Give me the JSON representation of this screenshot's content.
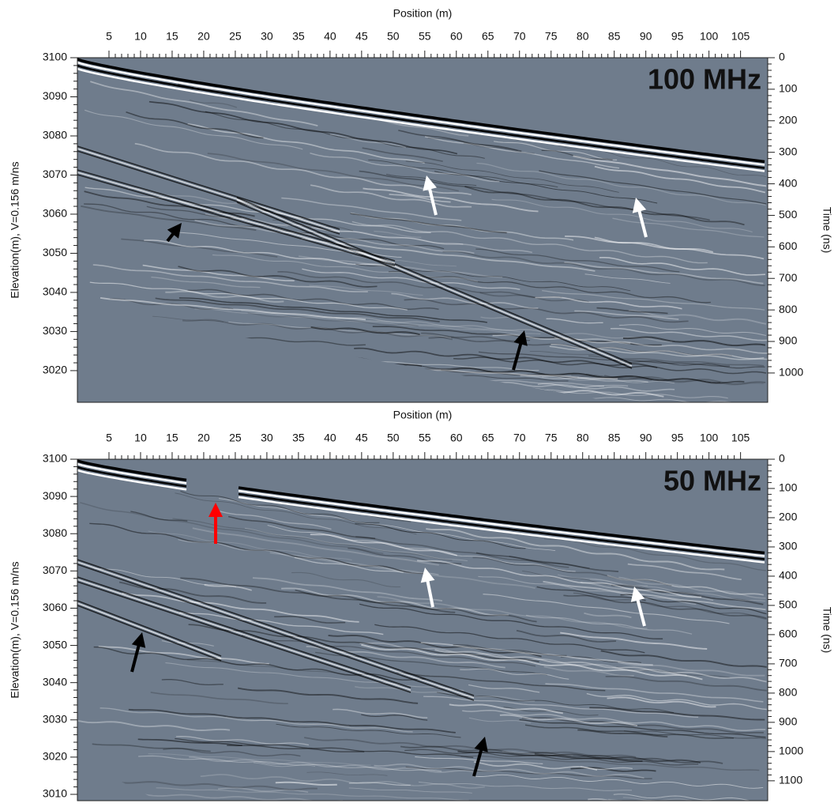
{
  "chart_data": [
    {
      "type": "radargram",
      "label": "100 MHz",
      "xlabel": "Position (m)",
      "ylabel": "Elevation(m), V=0.156 m/ns",
      "y2label": "Time (ns)",
      "xlim": [
        0,
        109.3
      ],
      "xticks": [
        5,
        10,
        15,
        20,
        25,
        30,
        35,
        40,
        45,
        50,
        55,
        60,
        65,
        70,
        75,
        80,
        85,
        90,
        95,
        100,
        105
      ],
      "ylim": [
        3011.9,
        3100
      ],
      "yticks": [
        3020,
        3030,
        3040,
        3050,
        3060,
        3070,
        3080,
        3090,
        3100
      ],
      "y2lim": [
        1093,
        0
      ],
      "y2ticks": [
        0,
        100,
        200,
        300,
        400,
        500,
        600,
        700,
        800,
        900,
        1000
      ]
    },
    {
      "type": "radargram",
      "label": "50 MHz",
      "xlabel": "Position (m)",
      "ylabel": "Elevation(m), V=0.156 m/ns",
      "y2label": "Time (ns)",
      "xlim": [
        0,
        109.3
      ],
      "xticks": [
        5,
        10,
        15,
        20,
        25,
        30,
        35,
        40,
        45,
        50,
        55,
        60,
        65,
        70,
        75,
        80,
        85,
        90,
        95,
        100,
        105
      ],
      "ylim": [
        3008.3,
        3100
      ],
      "yticks": [
        3010,
        3020,
        3030,
        3040,
        3050,
        3060,
        3070,
        3080,
        3090,
        3100
      ],
      "y2lim": [
        1168,
        0
      ],
      "y2ticks": [
        0,
        100,
        200,
        300,
        400,
        500,
        600,
        700,
        800,
        900,
        1000,
        1100
      ]
    }
  ]
}
